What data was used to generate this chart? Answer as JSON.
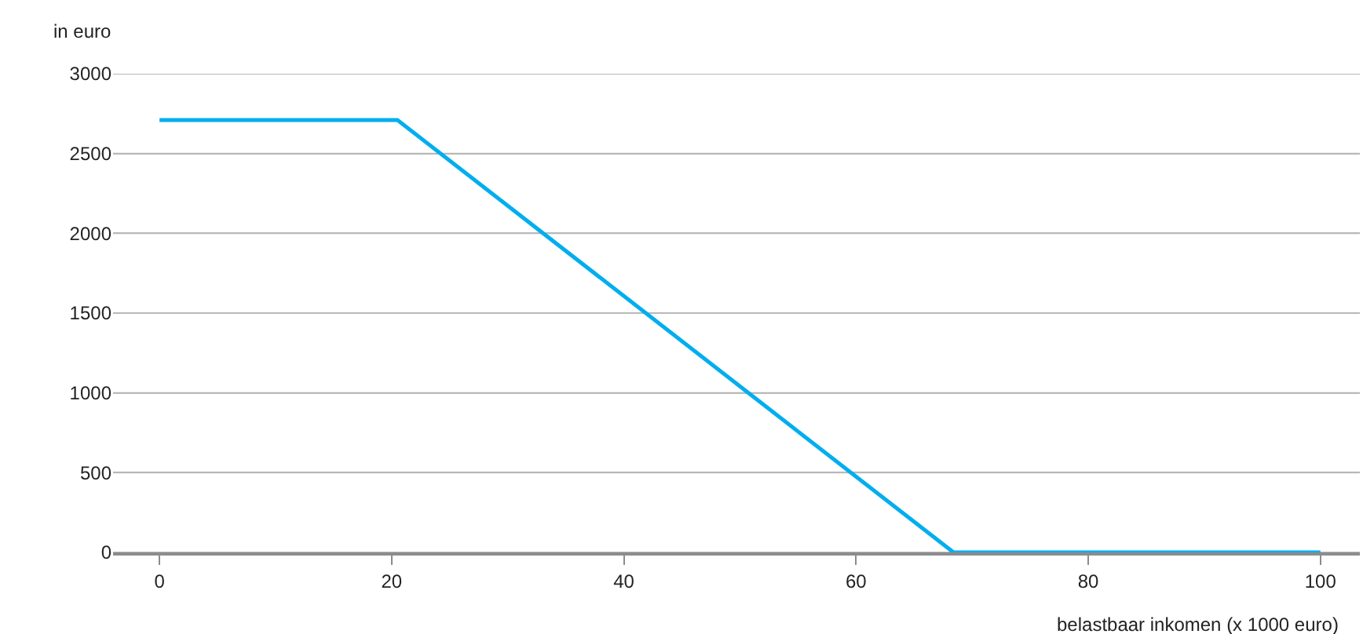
{
  "chart_data": {
    "type": "line",
    "ylabel": "in euro",
    "xlabel": "belastbaar inkomen (x 1000 euro)",
    "x": [
      0,
      20.5,
      68.4,
      100
    ],
    "series": [
      {
        "color": "#00aeef",
        "values": [
          2710,
          2710,
          0,
          0
        ]
      }
    ],
    "xlim": [
      -4,
      103.4
    ],
    "xticks": [
      0,
      20,
      40,
      60,
      80,
      100
    ],
    "ylim": [
      0,
      3000
    ],
    "yticks": [
      0,
      500,
      1000,
      1500,
      2000,
      2500,
      3000
    ],
    "grid": "y",
    "marker": "none",
    "line_style": "solid"
  }
}
